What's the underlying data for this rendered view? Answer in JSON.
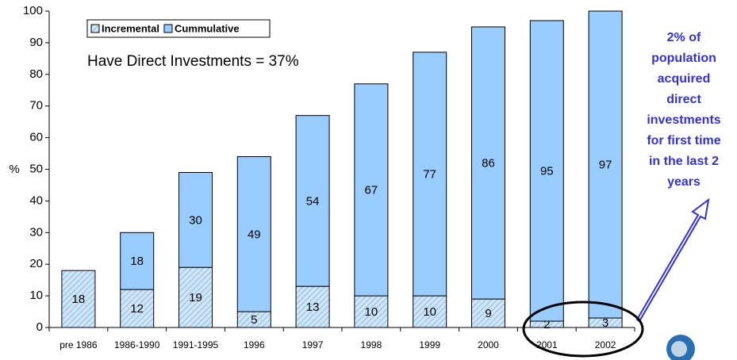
{
  "chart_data": {
    "type": "stacked-bar",
    "y_label": "%",
    "annotation": "Have Direct Investments = 37%",
    "side_note_lines": [
      "2% of",
      "population",
      "acquired",
      "direct",
      "investments",
      "for first time",
      "in the last 2",
      "years"
    ],
    "categories": [
      "pre 1986",
      "1986-1990",
      "1991-1995",
      "1996",
      "1997",
      "1998",
      "1999",
      "2000",
      "2001",
      "2002"
    ],
    "series": [
      {
        "name": "Incremental",
        "color": "#cfe5f8",
        "hatch": true,
        "values": [
          18,
          12,
          19,
          5,
          13,
          10,
          10,
          9,
          2,
          3
        ]
      },
      {
        "name": "Cummulative",
        "color": "#99ccff",
        "hatch": false,
        "values": [
          null,
          18,
          30,
          49,
          54,
          67,
          77,
          86,
          95,
          97
        ]
      }
    ],
    "ylim": [
      0,
      100
    ],
    "yticks": [
      0,
      10,
      20,
      30,
      40,
      50,
      60,
      70,
      80,
      90,
      100
    ]
  }
}
